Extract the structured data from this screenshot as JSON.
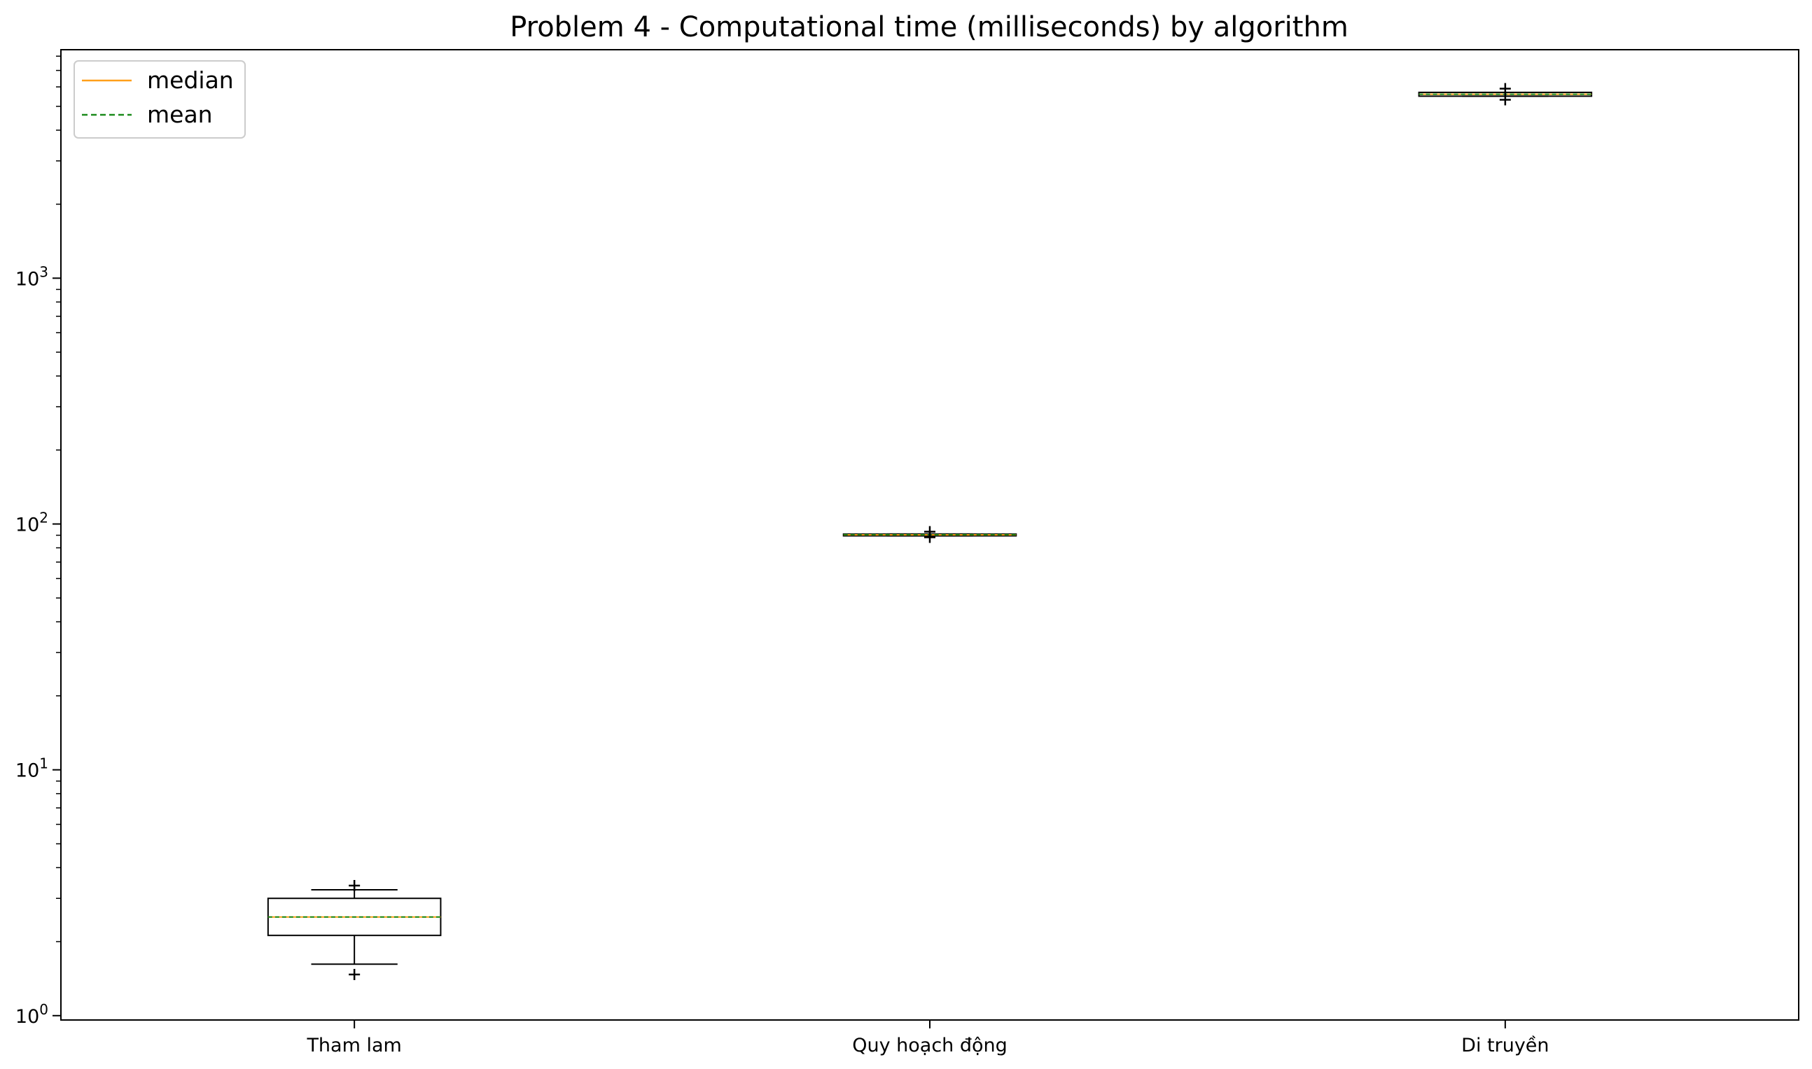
{
  "chart_data": {
    "type": "boxplot",
    "title": "Problem 4 - Computational time (milliseconds) by algorithm",
    "xlabel": "",
    "ylabel": "",
    "yscale": "log",
    "ylim": [
      0.96,
      8500
    ],
    "y_ticks": [
      {
        "value": 1,
        "base": "10",
        "exp": "0"
      },
      {
        "value": 10,
        "base": "10",
        "exp": "1"
      },
      {
        "value": 100,
        "base": "10",
        "exp": "2"
      },
      {
        "value": 1000,
        "base": "10",
        "exp": "3"
      }
    ],
    "categories": [
      "Tham lam",
      "Quy hoạch động",
      "Di truyền"
    ],
    "boxes": [
      {
        "label": "Tham lam",
        "whisker_low": 1.62,
        "q1": 2.12,
        "median": 2.52,
        "mean": 2.52,
        "q3": 3.0,
        "whisker_high": 3.25,
        "outliers": [
          1.47,
          3.38
        ]
      },
      {
        "label": "Quy hoạch động",
        "whisker_low": 89.5,
        "q1": 89.5,
        "median": 90.3,
        "mean": 90.5,
        "q3": 91.0,
        "whisker_high": 91.0,
        "outliers": [
          88.3,
          93.0
        ]
      },
      {
        "label": "Di truyền",
        "whisker_low": 5500,
        "q1": 5500,
        "median": 5600,
        "mean": 5600,
        "q3": 5700,
        "whisker_high": 5700,
        "outliers": [
          5320,
          5900
        ]
      }
    ],
    "legend": {
      "position": "top-left",
      "entries": [
        {
          "label": "median",
          "style": "solid",
          "color": "#ff9f1a"
        },
        {
          "label": "mean",
          "style": "dashed",
          "color": "#1a8a1a"
        }
      ]
    },
    "colors": {
      "median": "#ff9f1a",
      "mean": "#1a8a1a",
      "box": "#000000"
    },
    "grid": false
  }
}
